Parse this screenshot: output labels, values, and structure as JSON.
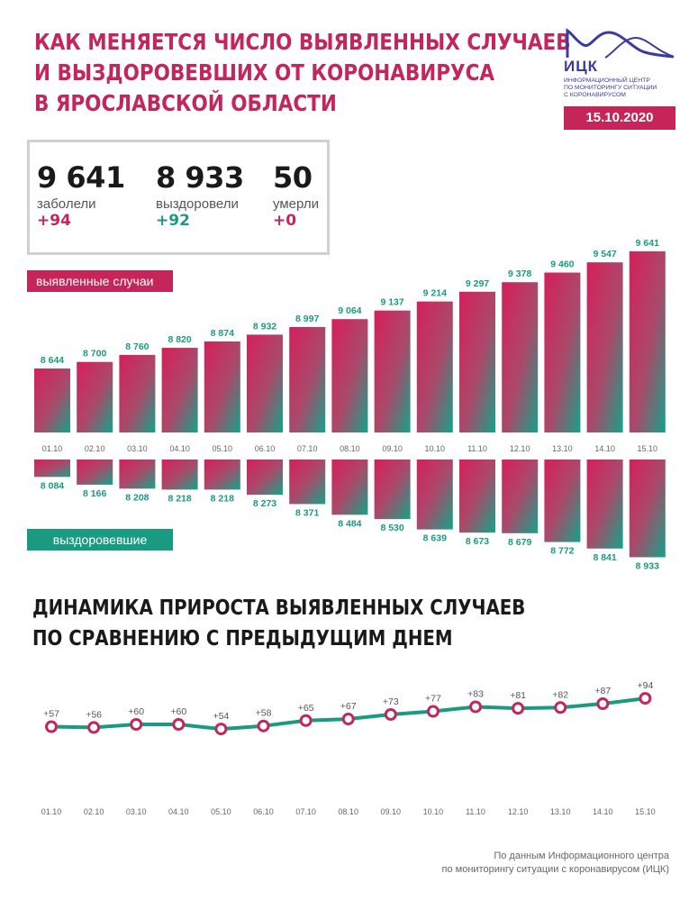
{
  "header": {
    "title_lines": [
      "КАК МЕНЯЕТСЯ ЧИСЛО ВЫЯВЛЕННЫХ СЛУЧАЕВ",
      "И ВЫЗДОРОВЕВШИХ ОТ КОРОНАВИРУСА",
      "В ЯРОСЛАВСКОЙ ОБЛАСТИ"
    ],
    "logo_text": "ИЦК",
    "logo_sub_lines": [
      "ИНФОРМАЦИОННЫЙ ЦЕНТР",
      "ПО МОНИТОРИНГУ СИТУАЦИИ",
      "С КОРОНАВИРУСОМ"
    ],
    "date": "15.10.2020"
  },
  "stats": [
    {
      "value": "9 641",
      "label": "заболели",
      "delta": "+94",
      "tone": "red"
    },
    {
      "value": "8 933",
      "label": "выздоровели",
      "delta": "+92",
      "tone": "green"
    },
    {
      "value": "50",
      "label": "умерли",
      "delta": "+0",
      "tone": "red"
    }
  ],
  "legend": {
    "cases": "выявленные случаи",
    "recovered": "выздоровевшие"
  },
  "section_title_lines": [
    "ДИНАМИКА ПРИРОСТА ВЫЯВЛЕННЫХ СЛУЧАЕВ",
    "ПО СРАВНЕНИЮ С ПРЕДЫДУЩИМ ДНЕМ"
  ],
  "source_lines": [
    "По данным Информационного центра",
    "по мониторингу ситуации с коронавирусом (ИЦК)"
  ],
  "colors": {
    "accent_red": "#c4265a",
    "accent_green": "#1a9a80",
    "line_marker": "#c4265a"
  },
  "chart_data": [
    {
      "type": "bar",
      "categories": [
        "01.10",
        "02.10",
        "03.10",
        "04.10",
        "05.10",
        "06.10",
        "07.10",
        "08.10",
        "09.10",
        "10.10",
        "11.10",
        "12.10",
        "13.10",
        "14.10",
        "15.10"
      ],
      "series": [
        {
          "name": "выявленные случаи",
          "values": [
            8644,
            8700,
            8760,
            8820,
            8874,
            8932,
            8997,
            9064,
            9137,
            9214,
            9297,
            9378,
            9460,
            9547,
            9641
          ],
          "labels": [
            "8 644",
            "8 700",
            "8 760",
            "8 820",
            "8 874",
            "8 932",
            "8 997",
            "9 064",
            "9 137",
            "9 214",
            "9 297",
            "9 378",
            "9 460",
            "9 547",
            "9 641"
          ]
        },
        {
          "name": "выздоровевшие",
          "values": [
            8084,
            8166,
            8208,
            8218,
            8218,
            8273,
            8371,
            8484,
            8530,
            8639,
            8673,
            8679,
            8772,
            8841,
            8933
          ],
          "labels": [
            "8 084",
            "8 166",
            "8 208",
            "8 218",
            "8 218",
            "8 273",
            "8 371",
            "8 484",
            "8 530",
            "8 639",
            "8 673",
            "8 679",
            "8 772",
            "8 841",
            "8 933"
          ]
        }
      ]
    },
    {
      "type": "line",
      "categories": [
        "01.10",
        "02.10",
        "03.10",
        "04.10",
        "05.10",
        "06.10",
        "07.10",
        "08.10",
        "09.10",
        "10.10",
        "11.10",
        "12.10",
        "13.10",
        "14.10",
        "15.10"
      ],
      "values": [
        57,
        56,
        60,
        60,
        54,
        58,
        65,
        67,
        73,
        77,
        83,
        81,
        82,
        87,
        94
      ],
      "labels": [
        "+57",
        "+56",
        "+60",
        "+60",
        "+54",
        "+58",
        "+65",
        "+67",
        "+73",
        "+77",
        "+83",
        "+81",
        "+82",
        "+87",
        "+94"
      ]
    }
  ]
}
